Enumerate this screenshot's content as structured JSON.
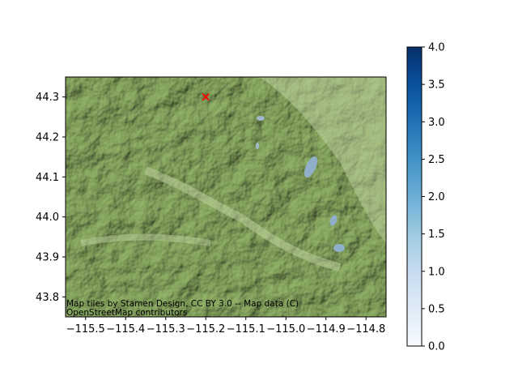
{
  "map": {
    "attribution_line1": "Map tiles by Stamen Design, CC BY 3.0 -- Map data (C)",
    "attribution_line2": "OpenStreetMap contributors",
    "marker": {
      "lon": -115.2,
      "lat": 44.3,
      "symbol": "x",
      "color": "#ff0000"
    },
    "xlim": [
      -115.55,
      -114.75
    ],
    "ylim": [
      43.75,
      44.35
    ],
    "x_ticks": [
      "−115.5",
      "−115.4",
      "−115.3",
      "−115.2",
      "−115.1",
      "−115.0",
      "−114.9",
      "−114.8"
    ],
    "x_tick_values": [
      -115.5,
      -115.4,
      -115.3,
      -115.2,
      -115.1,
      -115.0,
      -114.9,
      -114.8
    ],
    "y_ticks": [
      "43.8",
      "43.9",
      "44.0",
      "44.1",
      "44.2",
      "44.3"
    ],
    "y_tick_values": [
      43.8,
      43.9,
      44.0,
      44.1,
      44.2,
      44.3
    ]
  },
  "colorbar": {
    "colormap": "Blues",
    "range": [
      0.0,
      4.0
    ],
    "ticks": [
      "0.0",
      "0.5",
      "1.0",
      "1.5",
      "2.0",
      "2.5",
      "3.0",
      "3.5",
      "4.0"
    ],
    "tick_values": [
      0.0,
      0.5,
      1.0,
      1.5,
      2.0,
      2.5,
      3.0,
      3.5,
      4.0
    ],
    "color_low": "#f7fbff",
    "color_high": "#08306b"
  }
}
